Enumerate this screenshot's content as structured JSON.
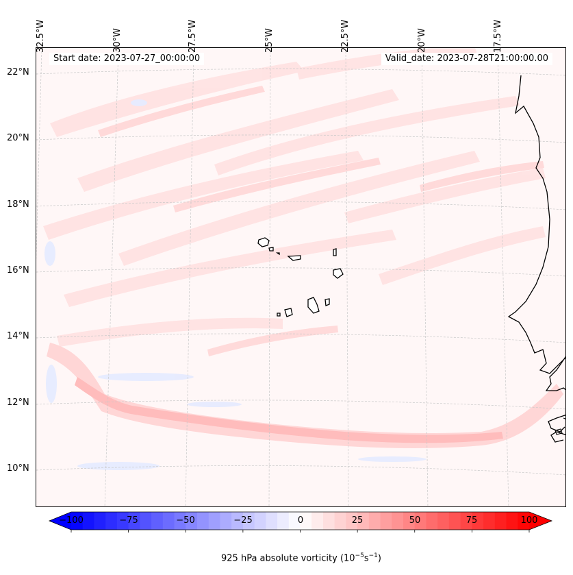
{
  "header": {
    "start_date": "Start date: 2023-07-27_00:00:00",
    "valid_date": "Valid_date: 2023-07-28T21:00:00.00"
  },
  "longitude_labels": [
    "32.5°W",
    "30°W",
    "27.5°W",
    "25°W",
    "22.5°W",
    "20°W",
    "17.5°W"
  ],
  "latitude_labels": [
    "22°N",
    "20°N",
    "18°N",
    "16°N",
    "14°N",
    "12°N",
    "10°N"
  ],
  "colorbar": {
    "ticks": [
      "−100",
      "−75",
      "−50",
      "−25",
      "0",
      "25",
      "50",
      "75",
      "100"
    ],
    "min": -100,
    "max": 100,
    "low_color": "#0000ff",
    "mid_color": "#ffffff",
    "high_color": "#ff0000",
    "label_prefix": "925 hPa absolute vorticity (10",
    "label_exp1": "−5",
    "label_mid": "s",
    "label_exp2": "−1",
    "label_suffix": ")"
  },
  "colors": {
    "background_field": "#fff7f7",
    "light_positive": "#ffe3e3",
    "medium_positive": "#ffcfcf",
    "strong_positive": "#ffb9b9",
    "light_negative": "#e8ecff",
    "coastline": "#000000",
    "gridline": "#c8c8c8"
  }
}
